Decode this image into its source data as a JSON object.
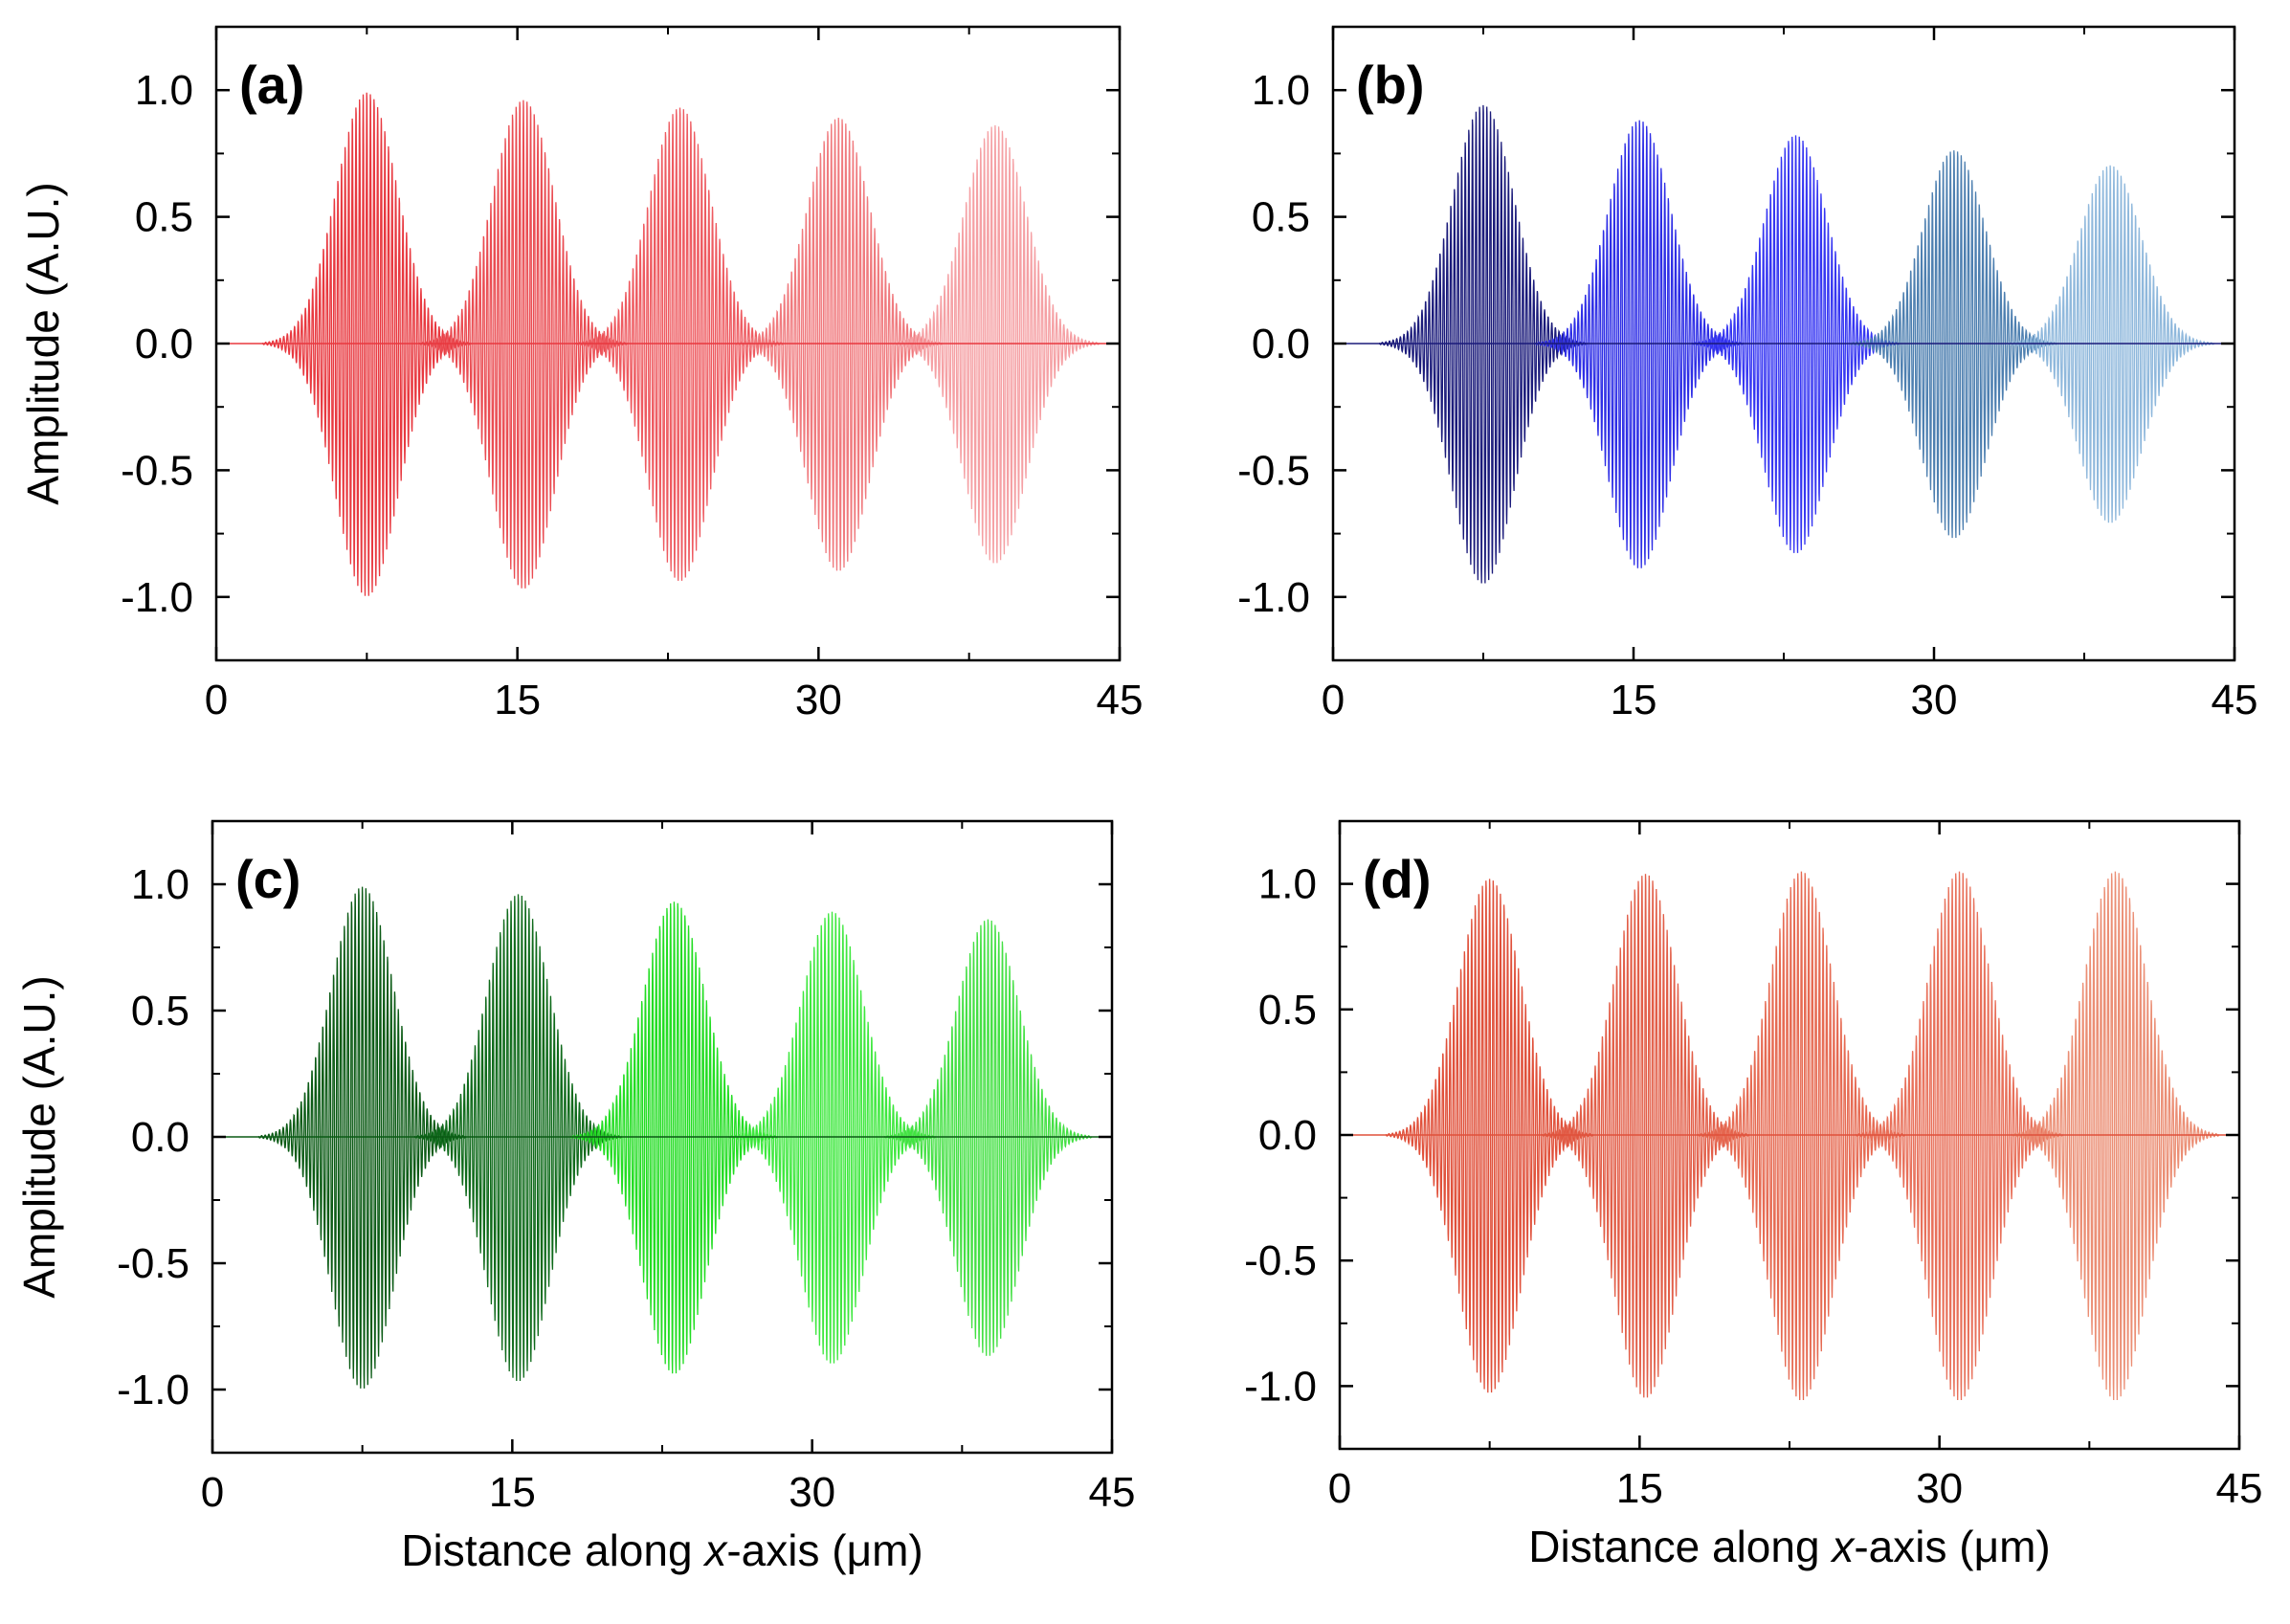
{
  "figure": {
    "ylabel": "Amplitude (A.U.)",
    "xlabel_prefix": "Distance along ",
    "xlabel_italic": "x",
    "xlabel_suffix": "-axis (",
    "xlabel_unit_mu": "μ",
    "xlabel_unit_rest": "m)"
  },
  "chart_data": [
    {
      "type": "line",
      "panel_label": "(a)",
      "ylabel": "Amplitude (A.U.)",
      "xlabel": "",
      "xlim": [
        0,
        45
      ],
      "ylim": [
        -1.25,
        1.25
      ],
      "xticks": [
        "0",
        "15",
        "30",
        "45"
      ],
      "yticks": [
        "1.0",
        "0.5",
        "0.0",
        "-0.5",
        "-1.0"
      ],
      "grid": false,
      "series": [
        {
          "center": 7.5,
          "amplitude": 1.0,
          "color": "#e8383f"
        },
        {
          "center": 15.3,
          "amplitude": 0.97,
          "color": "#ea4c52"
        },
        {
          "center": 23.1,
          "amplitude": 0.94,
          "color": "#ee5a60"
        },
        {
          "center": 31.0,
          "amplitude": 0.9,
          "color": "#f07a7e"
        },
        {
          "center": 38.8,
          "amplitude": 0.87,
          "color": "#f5a0a4"
        }
      ]
    },
    {
      "type": "line",
      "panel_label": "(b)",
      "ylabel": "",
      "xlabel": "",
      "xlim": [
        0,
        45
      ],
      "ylim": [
        -1.25,
        1.25
      ],
      "xticks": [
        "0",
        "15",
        "30",
        "45"
      ],
      "yticks": [
        "1.0",
        "0.5",
        "0.0",
        "-0.5",
        "-1.0"
      ],
      "grid": false,
      "series": [
        {
          "center": 7.5,
          "amplitude": 0.95,
          "color": "#1a1a7a"
        },
        {
          "center": 15.3,
          "amplitude": 0.89,
          "color": "#2d2de6"
        },
        {
          "center": 23.1,
          "amplitude": 0.83,
          "color": "#3535f2"
        },
        {
          "center": 31.0,
          "amplitude": 0.77,
          "color": "#4d7fb0"
        },
        {
          "center": 38.8,
          "amplitude": 0.71,
          "color": "#8fb8dc"
        }
      ]
    },
    {
      "type": "line",
      "panel_label": "(c)",
      "ylabel": "Amplitude (A.U.)",
      "xlabel": "Distance along x-axis (μm)",
      "xlim": [
        0,
        45
      ],
      "ylim": [
        -1.25,
        1.25
      ],
      "xticks": [
        "0",
        "15",
        "30",
        "45"
      ],
      "yticks": [
        "1.0",
        "0.5",
        "0.0",
        "-0.5",
        "-1.0"
      ],
      "grid": false,
      "series": [
        {
          "center": 7.5,
          "amplitude": 1.0,
          "color": "#0a5a14"
        },
        {
          "center": 15.3,
          "amplitude": 0.97,
          "color": "#0e6a1a"
        },
        {
          "center": 23.1,
          "amplitude": 0.94,
          "color": "#22dd22"
        },
        {
          "center": 31.0,
          "amplitude": 0.9,
          "color": "#3ee83e"
        },
        {
          "center": 38.8,
          "amplitude": 0.87,
          "color": "#44e044"
        }
      ]
    },
    {
      "type": "line",
      "panel_label": "(d)",
      "ylabel": "",
      "xlabel": "Distance along x-axis (μm)",
      "xlim": [
        0,
        45
      ],
      "ylim": [
        -1.25,
        1.25
      ],
      "xticks": [
        "0",
        "15",
        "30",
        "45"
      ],
      "yticks": [
        "1.0",
        "0.5",
        "0.0",
        "-0.5",
        "-1.0"
      ],
      "grid": false,
      "series": [
        {
          "center": 7.5,
          "amplitude": 1.03,
          "color": "#e0503a"
        },
        {
          "center": 15.3,
          "amplitude": 1.05,
          "color": "#e25e48"
        },
        {
          "center": 23.1,
          "amplitude": 1.06,
          "color": "#e66a52"
        },
        {
          "center": 31.0,
          "amplitude": 1.06,
          "color": "#e8705a"
        },
        {
          "center": 38.8,
          "amplitude": 1.06,
          "color": "#eb8e74"
        }
      ]
    }
  ]
}
